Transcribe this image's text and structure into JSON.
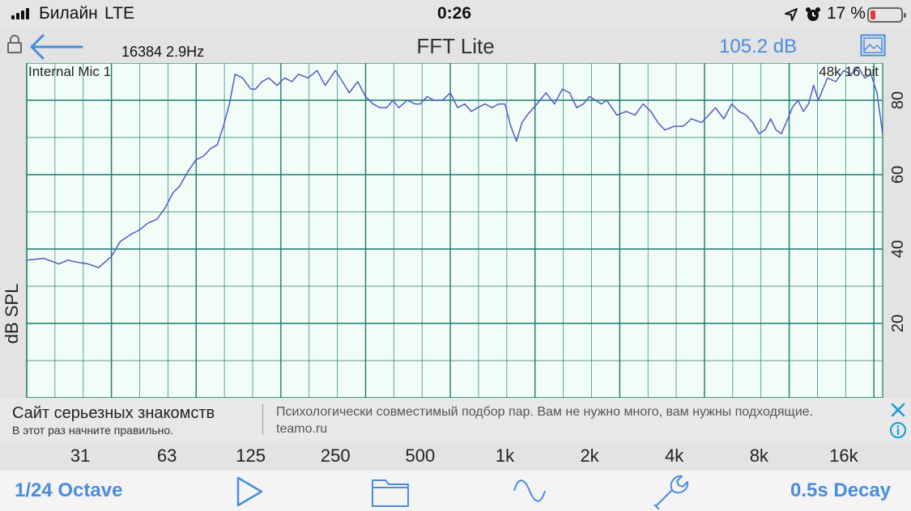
{
  "status_bar": {
    "carrier": "Билайн",
    "network": "LTE",
    "time": "0:26",
    "battery_percent": "17 %",
    "battery_level": 0.17,
    "icons": [
      "signal-icon",
      "location-icon",
      "alarm-icon",
      "battery-icon"
    ]
  },
  "toolbar": {
    "title": "FFT Lite",
    "fft_size": "16384  2.9Hz",
    "level": "105.2 dB",
    "icons": [
      "lock-icon",
      "back-arrow-icon",
      "image-icon"
    ]
  },
  "colors": {
    "grid": "#157a6e",
    "plot_bg": "#f3fdf7",
    "trace": "#5259c9",
    "accent": "#4a8cdc"
  },
  "chart_data": {
    "type": "line",
    "title": "",
    "input_label": "Internal Mic 1",
    "format_label": "48k 16 bit",
    "ylabel": "dB SPL",
    "xlabel": "",
    "x_scale": "log",
    "xlim": [
      20,
      22000
    ],
    "ylim": [
      0,
      90
    ],
    "y_ticks": [
      "0",
      "20",
      "40",
      "60",
      "80"
    ],
    "x_tick_labels": [
      "31",
      "63",
      "125",
      "250",
      "500",
      "1k",
      "2k",
      "4k",
      "8k",
      "16k"
    ],
    "x_tick_values": [
      31,
      63,
      125,
      250,
      500,
      1000,
      2000,
      4000,
      8000,
      16000
    ],
    "grid": true,
    "series": [
      {
        "x": [
          20,
          23,
          26,
          28,
          30,
          33,
          36,
          40,
          43,
          47,
          50,
          54,
          58,
          62,
          66,
          70,
          75,
          80,
          85,
          90,
          95,
          100,
          105,
          110,
          117,
          125,
          130,
          137,
          145,
          155,
          165,
          175,
          185,
          200,
          215,
          230,
          250,
          265,
          280,
          300,
          320,
          340,
          360,
          380,
          400,
          420,
          450,
          480,
          500,
          530,
          560,
          600,
          640,
          680,
          720,
          760,
          800,
          850,
          900,
          950,
          1000,
          1050,
          1100,
          1150,
          1200,
          1300,
          1400,
          1500,
          1600,
          1700,
          1800,
          1900,
          2000,
          2100,
          2200,
          2300,
          2400,
          2500,
          2700,
          2900,
          3100,
          3300,
          3500,
          3700,
          4000,
          4300,
          4600,
          5000,
          5300,
          5600,
          6000,
          6400,
          6800,
          7200,
          7600,
          8000,
          8400,
          8800,
          9200,
          9600,
          10000,
          10500,
          11000,
          11500,
          12000,
          12500,
          13000,
          14000,
          15000,
          16000,
          17000,
          18000,
          19000,
          20000,
          21000,
          22000
        ],
        "values": [
          37,
          37.5,
          36,
          37,
          36.5,
          36,
          35,
          38,
          42,
          44,
          45,
          47,
          48,
          51,
          55,
          57,
          61,
          64,
          65,
          67,
          68,
          73,
          79,
          87,
          86,
          83,
          83,
          85,
          86,
          84,
          86,
          85,
          87,
          86,
          88,
          84,
          88,
          85,
          82,
          85,
          81,
          79,
          78,
          78,
          80,
          78,
          80,
          79,
          79,
          81,
          80,
          80,
          82,
          78,
          79,
          77,
          78,
          79,
          78,
          79,
          79,
          73,
          69,
          74,
          76,
          79,
          82,
          79,
          83,
          82,
          78,
          79,
          81,
          80,
          79,
          80,
          78,
          76,
          77,
          76,
          79,
          77,
          74,
          72,
          73,
          73,
          75,
          74,
          76,
          78,
          75,
          79,
          77,
          76,
          74,
          71,
          72,
          75,
          72,
          71,
          74,
          78,
          80,
          77,
          79,
          84,
          80,
          86,
          85,
          88,
          87,
          89,
          86,
          87,
          82,
          71
        ]
      }
    ]
  },
  "ad": {
    "title": "Сайт серьезных знакомств",
    "subtitle": "В этот раз начните правильно.",
    "body": "Психологически совместимый подбор пар. Вам не нужно много, вам нужны подходящие. teamo.ru",
    "icons": [
      "ad-close-icon",
      "ad-info-icon"
    ]
  },
  "bottom_bar": {
    "octave_label": "1/24 Octave",
    "decay_label": "0.5s Decay",
    "icons": [
      "play-icon",
      "folder-icon",
      "sine-wave-icon",
      "wrench-icon"
    ]
  }
}
